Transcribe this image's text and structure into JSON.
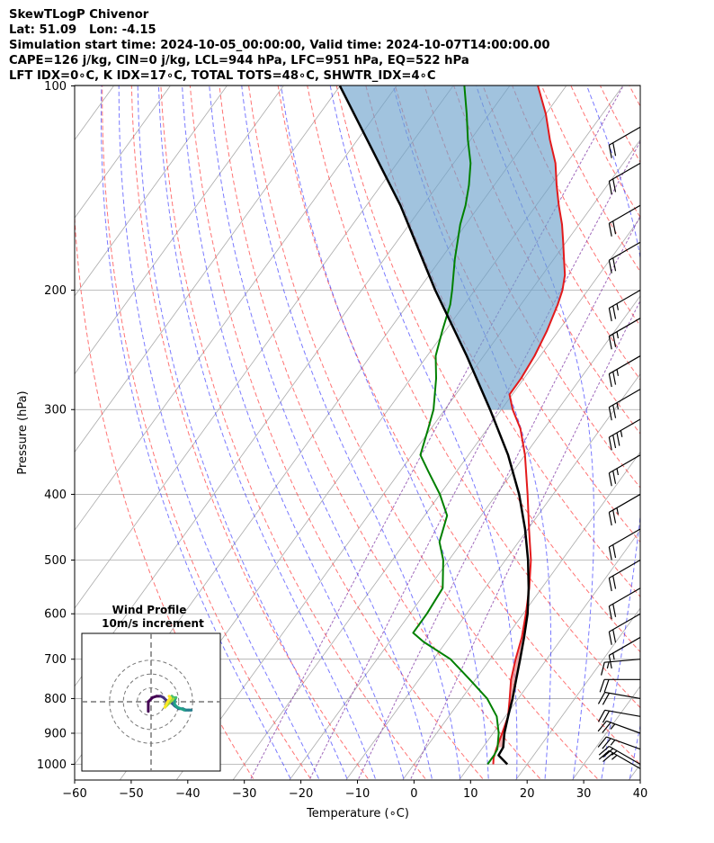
{
  "header": {
    "line1": "SkewTLogP Chivenor",
    "line2": "Lat: 51.09   Lon: -4.15",
    "line3": "Simulation start time: 2024-10-05_00:00:00, Valid time: 2024-10-07T14:00:00.00",
    "line4": "CAPE=126 j/kg, CIN=0 j/kg, LCL=944 hPa, LFC=951 hPa, EQ=522 hPa",
    "line5": "LFT IDX=0∘C, K IDX=17∘C, TOTAL TOTS=48∘C, SHWTR_IDX=4∘C"
  },
  "chart_data": [
    {
      "type": "line",
      "subtype": "skew-T log-P diagram",
      "xlabel": "Temperature (∘C)",
      "ylabel": "Pressure (hPa)",
      "xlim": [
        -60,
        40
      ],
      "ylim_pressure": [
        1050,
        100
      ],
      "y_scale": "log",
      "x_ticks": [
        "−60",
        "−50",
        "−40",
        "−30",
        "−20",
        "−10",
        "0",
        "10",
        "20",
        "30",
        "40"
      ],
      "x_tick_values": [
        -60,
        -50,
        -40,
        -30,
        -20,
        -10,
        0,
        10,
        20,
        30,
        40
      ],
      "y_ticks": [
        "1000",
        "900",
        "800",
        "700",
        "600",
        "500",
        "400",
        "300",
        "200",
        "100"
      ],
      "y_tick_values": [
        1000,
        900,
        800,
        700,
        600,
        500,
        400,
        300,
        200,
        100
      ],
      "colors": {
        "temperature": "#e31a1c",
        "dewpoint": "#008000",
        "parcel": "#000000",
        "cape_fill": "#6fa3cd",
        "cin_fill": "#e88080",
        "dry_adiabats": "#ff4444",
        "moist_adiabats": "#3333ff",
        "mixing_ratio": "#8844aa",
        "isotherms": "#aaaaaa"
      },
      "series": [
        {
          "key": "temperature",
          "points": [
            [
              1000,
              14.0
            ],
            [
              980,
              13.3
            ],
            [
              950,
              12.6
            ],
            [
              900,
              11.6
            ],
            [
              850,
              10.5
            ],
            [
              800,
              8.5
            ],
            [
              750,
              6.3
            ],
            [
              700,
              4.5
            ],
            [
              650,
              2.8
            ],
            [
              600,
              0.5
            ],
            [
              550,
              -2.2
            ],
            [
              500,
              -5.5
            ],
            [
              450,
              -9.8
            ],
            [
              400,
              -14.5
            ],
            [
              350,
              -20.0
            ],
            [
              320,
              -24.2
            ],
            [
              300,
              -28.0
            ],
            [
              285,
              -30.5
            ],
            [
              270,
              -30.5
            ],
            [
              250,
              -31.0
            ],
            [
              230,
              -32.0
            ],
            [
              210,
              -33.5
            ],
            [
              200,
              -34.5
            ],
            [
              190,
              -36.0
            ],
            [
              180,
              -38.2
            ],
            [
              170,
              -40.5
            ],
            [
              160,
              -43.0
            ],
            [
              150,
              -46.0
            ],
            [
              140,
              -49.0
            ],
            [
              130,
              -52.0
            ],
            [
              120,
              -56.0
            ],
            [
              110,
              -60.0
            ],
            [
              100,
              -65.0
            ]
          ]
        },
        {
          "key": "dewpoint",
          "points": [
            [
              1000,
              13.0
            ],
            [
              970,
              13.0
            ],
            [
              950,
              12.8
            ],
            [
              900,
              11.0
            ],
            [
              850,
              8.5
            ],
            [
              800,
              4.5
            ],
            [
              750,
              -1.0
            ],
            [
              700,
              -7.0
            ],
            [
              660,
              -14.0
            ],
            [
              640,
              -17.0
            ],
            [
              600,
              -17.0
            ],
            [
              550,
              -17.5
            ],
            [
              500,
              -21.0
            ],
            [
              470,
              -24.0
            ],
            [
              430,
              -26.0
            ],
            [
              400,
              -30.0
            ],
            [
              370,
              -35.0
            ],
            [
              350,
              -38.5
            ],
            [
              320,
              -40.5
            ],
            [
              300,
              -42.0
            ],
            [
              270,
              -45.5
            ],
            [
              250,
              -48.5
            ],
            [
              230,
              -50.5
            ],
            [
              210,
              -52.5
            ],
            [
              200,
              -54.0
            ],
            [
              180,
              -57.5
            ],
            [
              160,
              -61.0
            ],
            [
              150,
              -62.5
            ],
            [
              140,
              -64.5
            ],
            [
              130,
              -67.0
            ],
            [
              120,
              -70.5
            ],
            [
              110,
              -74.0
            ],
            [
              100,
              -78.0
            ]
          ]
        },
        {
          "key": "parcel",
          "points": [
            [
              1000,
              16.5
            ],
            [
              970,
              13.8
            ],
            [
              944,
              13.6
            ],
            [
              900,
              12.0
            ],
            [
              850,
              10.5
            ],
            [
              800,
              9.0
            ],
            [
              750,
              7.2
            ],
            [
              700,
              5.3
            ],
            [
              650,
              3.2
            ],
            [
              600,
              0.8
            ],
            [
              550,
              -2.3
            ],
            [
              500,
              -6.0
            ],
            [
              450,
              -10.5
            ],
            [
              400,
              -16.0
            ],
            [
              350,
              -23.0
            ],
            [
              300,
              -32.0
            ],
            [
              250,
              -43.0
            ],
            [
              200,
              -57.0
            ],
            [
              150,
              -74.0
            ],
            [
              100,
              -100.0
            ]
          ]
        }
      ],
      "wind_barbs": [
        {
          "p": 1015,
          "dir": 300,
          "speed_kt": 25
        },
        {
          "p": 1000,
          "dir": 300,
          "speed_kt": 25
        },
        {
          "p": 950,
          "dir": 290,
          "speed_kt": 25
        },
        {
          "p": 900,
          "dir": 290,
          "speed_kt": 25
        },
        {
          "p": 850,
          "dir": 280,
          "speed_kt": 20
        },
        {
          "p": 800,
          "dir": 280,
          "speed_kt": 20
        },
        {
          "p": 750,
          "dir": 270,
          "speed_kt": 20
        },
        {
          "p": 700,
          "dir": 265,
          "speed_kt": 15
        },
        {
          "p": 650,
          "dir": 240,
          "speed_kt": 15
        },
        {
          "p": 600,
          "dir": 240,
          "speed_kt": 20
        },
        {
          "p": 550,
          "dir": 240,
          "speed_kt": 20
        },
        {
          "p": 500,
          "dir": 240,
          "speed_kt": 20
        },
        {
          "p": 450,
          "dir": 240,
          "speed_kt": 20
        },
        {
          "p": 400,
          "dir": 240,
          "speed_kt": 25
        },
        {
          "p": 350,
          "dir": 240,
          "speed_kt": 25
        },
        {
          "p": 310,
          "dir": 240,
          "speed_kt": 35
        },
        {
          "p": 280,
          "dir": 240,
          "speed_kt": 25
        },
        {
          "p": 250,
          "dir": 240,
          "speed_kt": 25
        },
        {
          "p": 220,
          "dir": 240,
          "speed_kt": 25
        },
        {
          "p": 200,
          "dir": 240,
          "speed_kt": 25
        },
        {
          "p": 170,
          "dir": 240,
          "speed_kt": 20
        },
        {
          "p": 150,
          "dir": 240,
          "speed_kt": 20
        },
        {
          "p": 130,
          "dir": 240,
          "speed_kt": 20
        },
        {
          "p": 115,
          "dir": 240,
          "speed_kt": 20
        }
      ]
    },
    {
      "type": "line",
      "subtype": "hodograph",
      "title": "Wind Profile",
      "subtitle": "10m/s increment",
      "rings_ms": [
        10,
        20,
        30
      ],
      "range_ms": 50,
      "colormap": "viridis",
      "points": [
        [
          -2,
          -7
        ],
        [
          -2,
          0
        ],
        [
          1,
          3
        ],
        [
          4,
          4
        ],
        [
          7,
          4
        ],
        [
          9,
          3
        ],
        [
          11,
          1
        ],
        [
          13,
          0
        ],
        [
          15,
          -1
        ],
        [
          17,
          -3
        ],
        [
          20,
          -5
        ],
        [
          23,
          -5
        ],
        [
          25,
          -6
        ],
        [
          27,
          -6
        ],
        [
          29,
          -6
        ],
        [
          24,
          -6
        ],
        [
          19,
          -4
        ],
        [
          17,
          -2
        ],
        [
          17,
          1
        ],
        [
          18,
          3
        ],
        [
          16,
          3
        ],
        [
          15,
          4
        ],
        [
          16,
          2
        ],
        [
          15,
          1
        ],
        [
          13,
          -1
        ],
        [
          11,
          -3
        ],
        [
          10,
          -4
        ],
        [
          12,
          0
        ],
        [
          14,
          3
        ],
        [
          13,
          4
        ]
      ]
    }
  ]
}
